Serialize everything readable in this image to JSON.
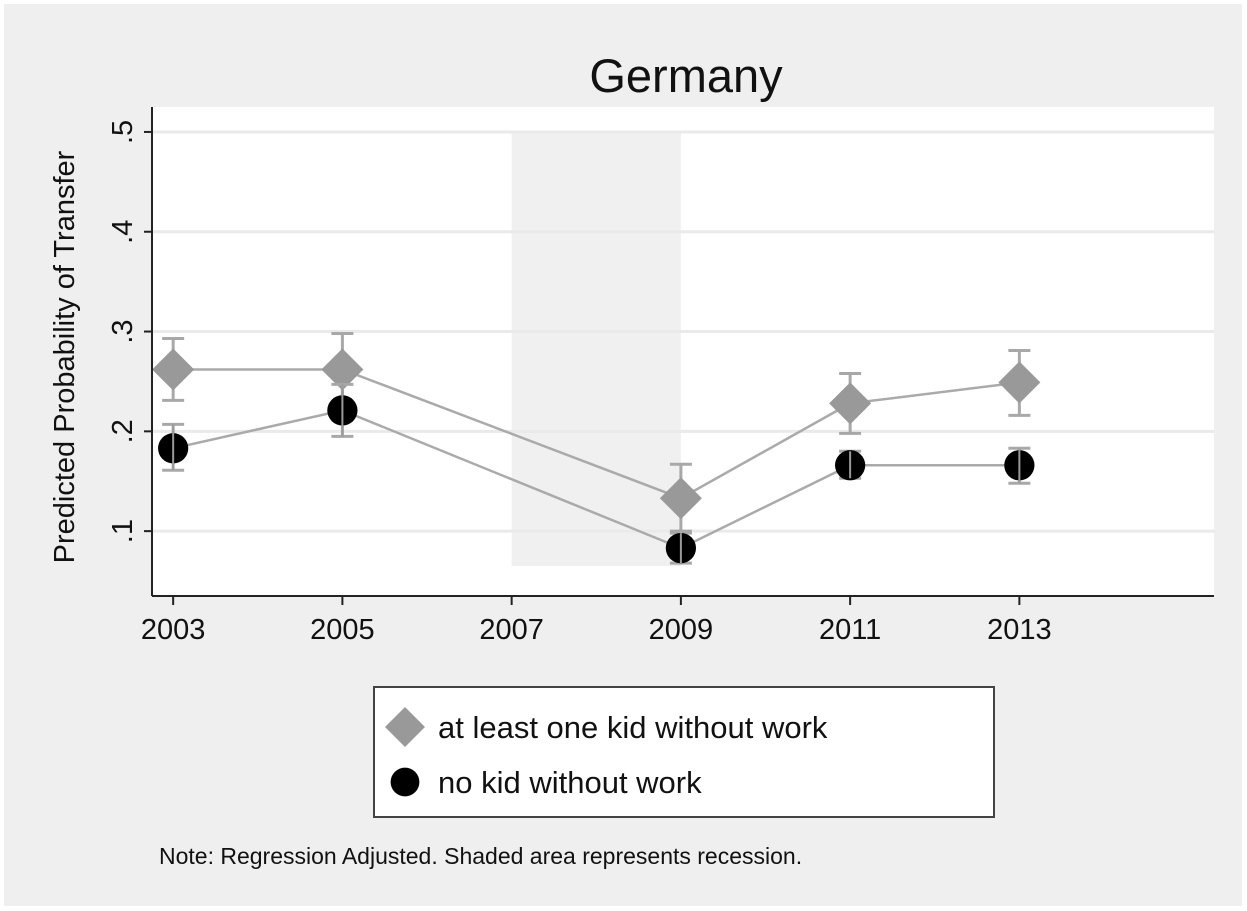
{
  "chart_data": {
    "type": "line",
    "title": "Germany",
    "ylabel": "Predicted Probability of Transfer",
    "xlabel": "",
    "x": [
      2003,
      2005,
      2009,
      2011,
      2013
    ],
    "xticks": [
      2003,
      2005,
      2007,
      2009,
      2011,
      2013
    ],
    "yticks": [
      0.1,
      0.2,
      0.3,
      0.4,
      0.5
    ],
    "ytick_labels": [
      ".1",
      ".2",
      ".3",
      ".4",
      ".5"
    ],
    "xlim": [
      2002.75,
      2015.3
    ],
    "ylim": [
      0.035,
      0.525
    ],
    "grid": true,
    "shaded_region": {
      "x": [
        2007,
        2009
      ],
      "y": [
        0.065,
        0.5
      ]
    },
    "series": [
      {
        "name": "at least one kid without work",
        "marker": "diamond",
        "color": "#999999",
        "values": [
          0.262,
          0.262,
          0.133,
          0.228,
          0.249
        ],
        "ci_low": [
          0.231,
          0.227,
          0.1,
          0.198,
          0.216
        ],
        "ci_high": [
          0.293,
          0.298,
          0.167,
          0.258,
          0.281
        ]
      },
      {
        "name": "no kid without work",
        "marker": "circle",
        "color": "#000000",
        "values": [
          0.183,
          0.221,
          0.083,
          0.166,
          0.166
        ],
        "ci_low": [
          0.161,
          0.195,
          0.068,
          0.153,
          0.148
        ],
        "ci_high": [
          0.207,
          0.247,
          0.098,
          0.18,
          0.183
        ]
      }
    ],
    "legend": {
      "position": "bottom",
      "items": [
        "at least one kid without work",
        "no kid without work"
      ]
    },
    "note": "Note: Regression Adjusted. Shaded area represents recession.",
    "colors": {
      "background": "#efefef",
      "plot_background": "#ffffff",
      "shade": "#f0f0f0",
      "grid": "#eaeaea",
      "connector": "#aaaaaa"
    }
  }
}
